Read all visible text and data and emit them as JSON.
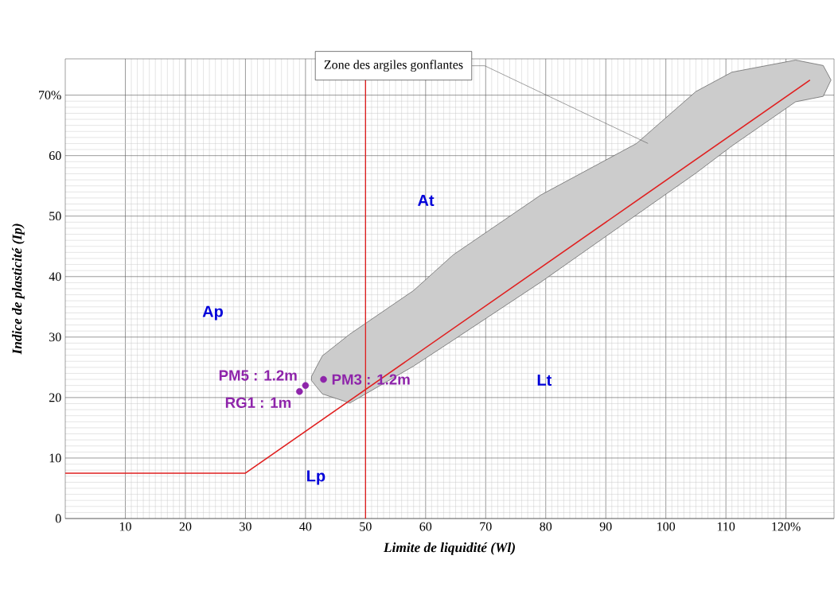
{
  "chart_data": {
    "type": "scatter",
    "xlabel": "Limite de liquidité  (Wl)",
    "ylabel": "Indice de plasticité (Ip)",
    "xlim": [
      0,
      128
    ],
    "ylim": [
      0,
      76
    ],
    "xticks": [
      10,
      20,
      30,
      40,
      50,
      60,
      70,
      80,
      90,
      100,
      110,
      {
        "value": 120,
        "label": "120%"
      }
    ],
    "yticks": [
      0,
      10,
      20,
      30,
      40,
      50,
      60,
      {
        "value": 70,
        "label": "70%"
      }
    ],
    "grid": true,
    "series": [
      {
        "type": "line",
        "color": "#555555",
        "x": [
          41,
          42.8,
          47.4,
          58,
          64.6,
          79.2,
          95.1,
          105,
          111,
          121.6,
          126.2,
          127.5
        ],
        "values": [
          null,
          null,
          null,
          null,
          null,
          null,
          null,
          null,
          null,
          null,
          null,
          null
        ],
        "lower": [
          22.8,
          20.6,
          19.1,
          25.2,
          29.5,
          39.1,
          50.2,
          57.1,
          61.6,
          68.9,
          69.8,
          72.5
        ],
        "upper": [
          23.5,
          26.9,
          30.5,
          37.7,
          43.6,
          53.5,
          62,
          70.6,
          73.8,
          75.8,
          74.9,
          72.5
        ]
      },
      {
        "type": "line",
        "color": "#e02020",
        "x": [
          0,
          30,
          124
        ],
        "values": [
          7.5,
          7.5,
          72.5
        ]
      },
      {
        "name": "PM5 : 1.2m",
        "color": "#8e24aa",
        "x": [
          40
        ],
        "values": [
          22
        ],
        "marker": "circle"
      },
      {
        "name": "RG1 : 1m",
        "color": "#8e24aa",
        "x": [
          39
        ],
        "values": [
          21
        ],
        "marker": "circle"
      },
      {
        "name": "PM3 : 1.2m",
        "color": "#8e24aa",
        "x": [
          43
        ],
        "values": [
          23
        ],
        "marker": "circle"
      }
    ],
    "ref_lines": [
      {
        "axis": "x",
        "value": 50,
        "color": "#e02020"
      }
    ],
    "annotations": [
      "Zone des argiles gonflantes",
      "Ap",
      "At",
      "Lp",
      "Lt"
    ]
  }
}
